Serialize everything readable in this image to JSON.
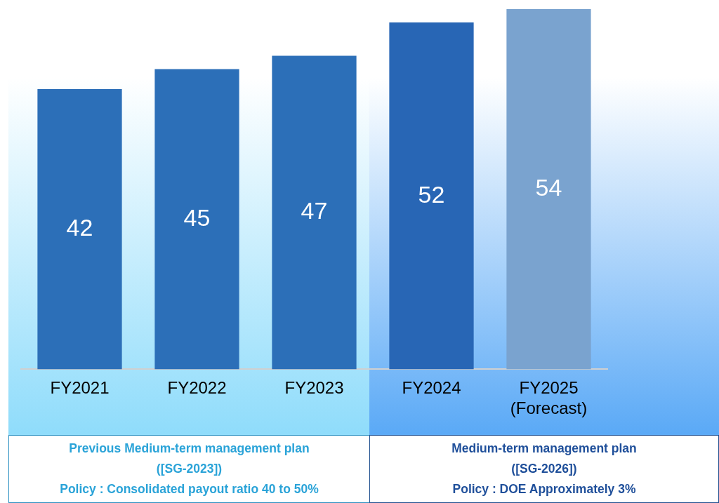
{
  "chart_data": {
    "type": "bar",
    "categories": [
      "FY2021",
      "FY2022",
      "FY2023",
      "FY2024",
      "FY2025 (Forecast)"
    ],
    "values": [
      42,
      45,
      47,
      52,
      54
    ],
    "colors": [
      "#2c6fb8",
      "#2c6fb8",
      "#2c6fb8",
      "#2866b5",
      "#7aa3cf"
    ],
    "data_labels": true,
    "grid": false,
    "legend": false,
    "annotations": [
      "Previous Medium-term management plan",
      "([SG-2023])",
      "Policy : Consolidated payout ratio 40 to 50%",
      "Medium-term management plan",
      "([SG-2026])",
      "Policy : DOE Approximately 3%"
    ]
  }
}
